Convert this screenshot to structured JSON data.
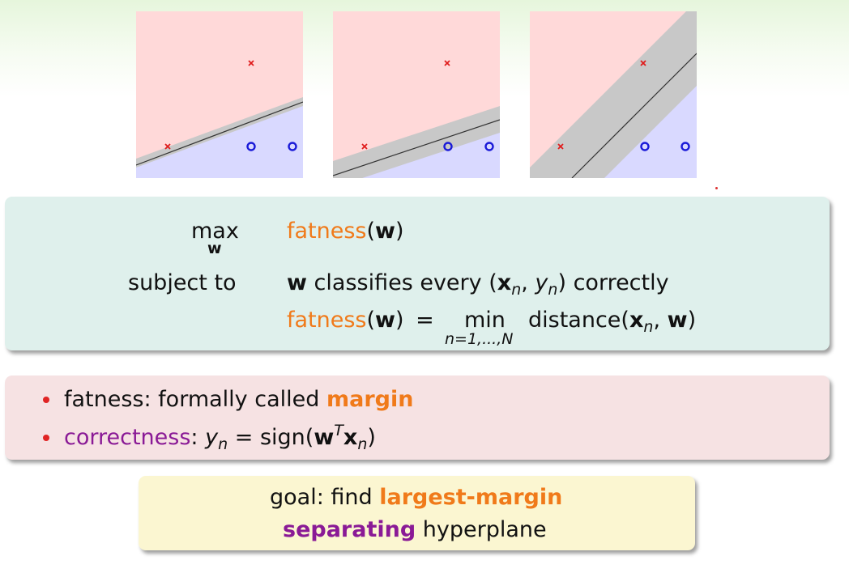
{
  "plots": [
    {
      "name": "thin-margin-plot",
      "points": [
        {
          "type": "x",
          "label": "x"
        },
        {
          "type": "x",
          "label": "x"
        },
        {
          "type": "o",
          "label": "o"
        },
        {
          "type": "o",
          "label": "o"
        }
      ]
    },
    {
      "name": "medium-margin-plot",
      "points": [
        {
          "type": "x",
          "label": "x"
        },
        {
          "type": "x",
          "label": "x"
        },
        {
          "type": "o",
          "label": "o"
        },
        {
          "type": "o",
          "label": "o"
        }
      ]
    },
    {
      "name": "fat-margin-plot",
      "points": [
        {
          "type": "x",
          "label": "x"
        },
        {
          "type": "x",
          "label": "x"
        },
        {
          "type": "o",
          "label": "o"
        },
        {
          "type": "o",
          "label": "o"
        }
      ]
    }
  ],
  "formulation": {
    "max_label": "max",
    "max_var": "w",
    "objective_fn": "fatness",
    "objective_arg": "w",
    "subject_to": "subject to",
    "constraint_w": "w",
    "constraint_text": "classifies every",
    "constraint_x": "x",
    "constraint_n": "n",
    "constraint_y": "y",
    "constraint_tail": "correctly",
    "def_fn": "fatness",
    "def_arg": "w",
    "equals": "=",
    "min_label": "min",
    "min_sub": "n=1,...,N",
    "distance": "distance",
    "distance_x": "x",
    "distance_n": "n",
    "distance_w": "w"
  },
  "notes": [
    {
      "prefix": "fatness: formally called ",
      "emph": "margin"
    },
    {
      "label": "correctness",
      "colon": ":",
      "y": "y",
      "n": "n",
      "eq": "=",
      "sign": "sign",
      "w": "w",
      "T": "T",
      "x": "x",
      "n2": "n"
    }
  ],
  "goal": {
    "line1_prefix": "goal: find ",
    "line1_emph": "largest-margin",
    "line2_emph": "separating",
    "line2_suffix": " hyperplane"
  },
  "colors": {
    "positive_region": "#ffd9d9",
    "negative_region": "#d9d9ff",
    "margin_band": "#c8c8c8",
    "orange": "#f07a1a",
    "purple": "#8a1a96",
    "bullet": "#e02424"
  }
}
